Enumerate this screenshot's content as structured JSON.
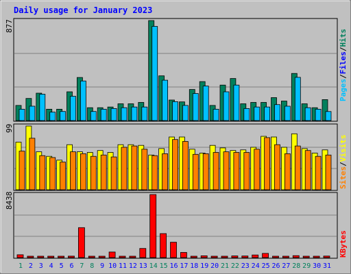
{
  "title": "Daily usage for January 2023",
  "colors": {
    "background": "#c0c0c0",
    "title": "#0000ff",
    "pages": "#00805c",
    "files": "#00c0ff",
    "hits": "#00805c",
    "visits": "#ffff00",
    "sites": "#ff8000",
    "kbytes": "#ff0000",
    "weekend_day": "#00805c",
    "weekday": "#0000ff"
  },
  "panels": {
    "top": {
      "max_label": "877",
      "labels": [
        "Pages",
        "Files",
        "Hits"
      ],
      "sep": "/"
    },
    "middle": {
      "max_label": "99",
      "labels": [
        "Sites",
        "Visits"
      ],
      "sep": "/"
    },
    "bottom": {
      "max_label": "8438",
      "labels": [
        "KBytes"
      ]
    }
  },
  "chart_data": {
    "type": "bar",
    "title": "Daily usage for January 2023",
    "categories": [
      "1",
      "2",
      "3",
      "4",
      "5",
      "6",
      "7",
      "8",
      "9",
      "10",
      "11",
      "12",
      "13",
      "14",
      "15",
      "16",
      "17",
      "18",
      "19",
      "20",
      "21",
      "22",
      "23",
      "24",
      "25",
      "26",
      "27",
      "28",
      "29",
      "30",
      "31"
    ],
    "weekend_days": [
      "1",
      "7",
      "8",
      "14",
      "15",
      "21",
      "22",
      "28",
      "29"
    ],
    "panels": [
      {
        "name": "top",
        "max": 877,
        "series": [
          {
            "name": "Hits",
            "values": [
              133,
              194,
              240,
              100,
              100,
              252,
              378,
              113,
              113,
              119,
              147,
              147,
              159,
              877,
              392,
              180,
              164,
              273,
              342,
              133,
              311,
              369,
              147,
              159,
              159,
              201,
              171,
              413,
              147,
              113,
              184
            ]
          },
          {
            "name": "Files",
            "values": [
              100,
              126,
              231,
              74,
              80,
              213,
              347,
              80,
              100,
              106,
              113,
              119,
              119,
              826,
              354,
              166,
              133,
              237,
              303,
              100,
              252,
              311,
              106,
              119,
              119,
              140,
              126,
              379,
              113,
              100,
              79
            ]
          }
        ]
      },
      {
        "name": "middle",
        "max": 99,
        "series": [
          {
            "name": "Visits",
            "values": [
              74,
              99,
              59,
              52,
              46,
              70,
              59,
              58,
              61,
              58,
              70,
              70,
              69,
              54,
              64,
              82,
              82,
              63,
              57,
              69,
              65,
              61,
              62,
              66,
              83,
              82,
              66,
              87,
              64,
              57,
              62
            ]
          },
          {
            "name": "Sites",
            "values": [
              60,
              80,
              53,
              50,
              43,
              59,
              56,
              52,
              54,
              51,
              66,
              68,
              63,
              53,
              56,
              78,
              75,
              55,
              56,
              58,
              59,
              58,
              58,
              63,
              81,
              70,
              56,
              68,
              61,
              52,
              54
            ]
          }
        ]
      },
      {
        "name": "bottom",
        "max": 8438,
        "series": [
          {
            "name": "KBytes",
            "values": [
              380,
              150,
              120,
              130,
              60,
              190,
              4011,
              140,
              100,
              740,
              90,
              70,
              1220,
              8438,
              3210,
              2055,
              690,
              90,
              240,
              110,
              180,
              220,
              210,
              350,
              560,
              130,
              70,
              260,
              140,
              180,
              200
            ]
          }
        ]
      }
    ]
  }
}
